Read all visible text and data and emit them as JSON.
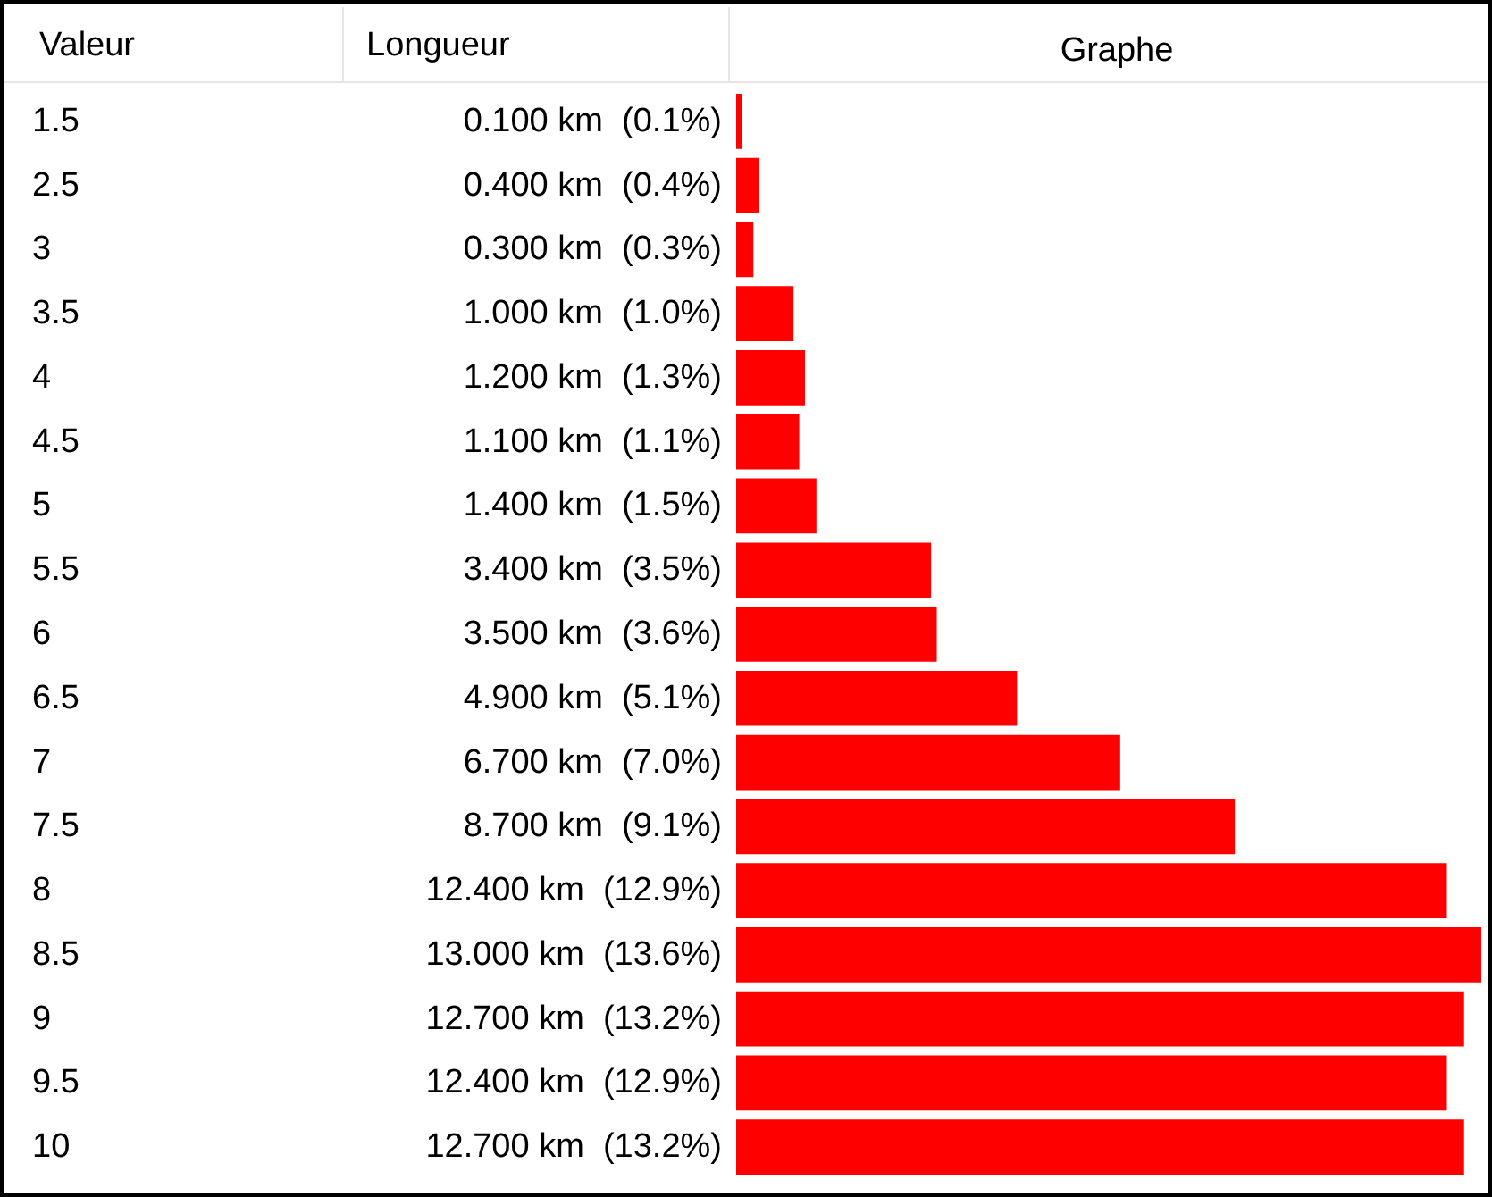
{
  "chart_data": {
    "type": "bar",
    "orientation": "horizontal",
    "title": "Graphe",
    "ylabel": "Valeur",
    "annotations": [
      "Longueur"
    ],
    "categories": [
      "1.5",
      "2.5",
      "3",
      "3.5",
      "4",
      "4.5",
      "5",
      "5.5",
      "6",
      "6.5",
      "7",
      "7.5",
      "8",
      "8.5",
      "9",
      "9.5",
      "10"
    ],
    "values": [
      0.1,
      0.4,
      0.3,
      1.0,
      1.2,
      1.1,
      1.4,
      3.4,
      3.5,
      4.9,
      6.7,
      8.7,
      12.4,
      13.0,
      12.7,
      12.4,
      12.7
    ],
    "value_labels": [
      "0.100 km  (0.1%)",
      "0.400 km  (0.4%)",
      "0.300 km  (0.3%)",
      "1.000 km  (1.0%)",
      "1.200 km  (1.3%)",
      "1.100 km  (1.1%)",
      "1.400 km  (1.5%)",
      "3.400 km  (3.5%)",
      "3.500 km  (3.6%)",
      "4.900 km  (5.1%)",
      "6.700 km  (7.0%)",
      "8.700 km  (9.1%)",
      "12.400 km  (12.9%)",
      "13.000 km  (13.6%)",
      "12.700 km  (13.2%)",
      "12.400 km  (12.9%)",
      "12.700 km  (13.2%)"
    ],
    "color": "#ff0000"
  }
}
